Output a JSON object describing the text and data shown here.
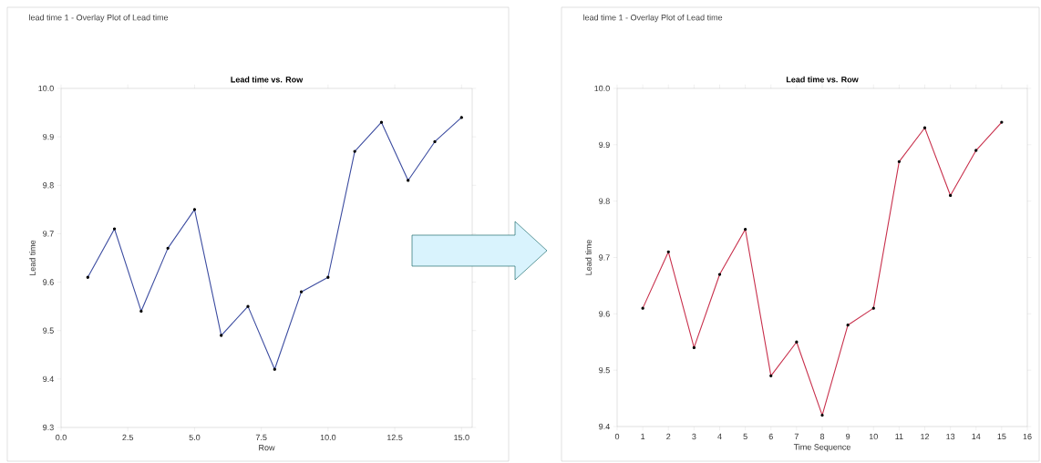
{
  "chart_data": [
    {
      "type": "line",
      "title": "Lead time vs. Row",
      "xlabel": "Row",
      "ylabel": "Lead time",
      "annotations": [
        "lead time 1 - Overlay Plot of Lead time"
      ],
      "x": [
        1,
        2,
        3,
        4,
        5,
        6,
        7,
        8,
        9,
        10,
        11,
        12,
        13,
        14,
        15
      ],
      "series": [
        {
          "color": "#3c4ca0",
          "values": [
            9.61,
            9.71,
            9.54,
            9.67,
            9.75,
            9.49,
            9.55,
            9.42,
            9.58,
            9.61,
            9.87,
            9.93,
            9.81,
            9.89,
            9.94
          ]
        }
      ],
      "xlim": [
        0,
        15.4
      ],
      "ylim": [
        9.3,
        10.0
      ],
      "xticks": [
        {
          "value": 0,
          "label": "0.0"
        },
        {
          "value": 2.5,
          "label": "2.5"
        },
        {
          "value": 5,
          "label": "5.0"
        },
        {
          "value": 7.5,
          "label": "7.5"
        },
        {
          "value": 10,
          "label": "10.0"
        },
        {
          "value": 12.5,
          "label": "12.5"
        },
        {
          "value": 15,
          "label": "15.0"
        }
      ],
      "yticks": [
        9.3,
        9.4,
        9.5,
        9.6,
        9.7,
        9.8,
        9.9,
        {
          "value": 10,
          "label": "10.0"
        }
      ],
      "marker": "circle",
      "line_style": "solid"
    },
    {
      "type": "line",
      "title": "Lead time vs. Row",
      "xlabel": "Time Sequence",
      "ylabel": "Lead time",
      "annotations": [
        "lead time 1 - Overlay Plot of Lead time"
      ],
      "x": [
        1,
        2,
        3,
        4,
        5,
        6,
        7,
        8,
        9,
        10,
        11,
        12,
        13,
        14,
        15
      ],
      "series": [
        {
          "color": "#c8304c",
          "values": [
            9.61,
            9.71,
            9.54,
            9.67,
            9.75,
            9.49,
            9.55,
            9.42,
            9.58,
            9.61,
            9.87,
            9.93,
            9.81,
            9.89,
            9.94
          ]
        }
      ],
      "xlim": [
        0,
        16
      ],
      "ylim": [
        9.4,
        10.0
      ],
      "xticks": [
        0,
        1,
        2,
        3,
        4,
        5,
        6,
        7,
        8,
        9,
        10,
        11,
        12,
        13,
        14,
        15,
        16
      ],
      "yticks": [
        9.4,
        9.5,
        9.6,
        9.7,
        9.8,
        9.9,
        {
          "value": 10,
          "label": "10.0"
        }
      ],
      "marker": "circle",
      "line_style": "solid"
    }
  ]
}
